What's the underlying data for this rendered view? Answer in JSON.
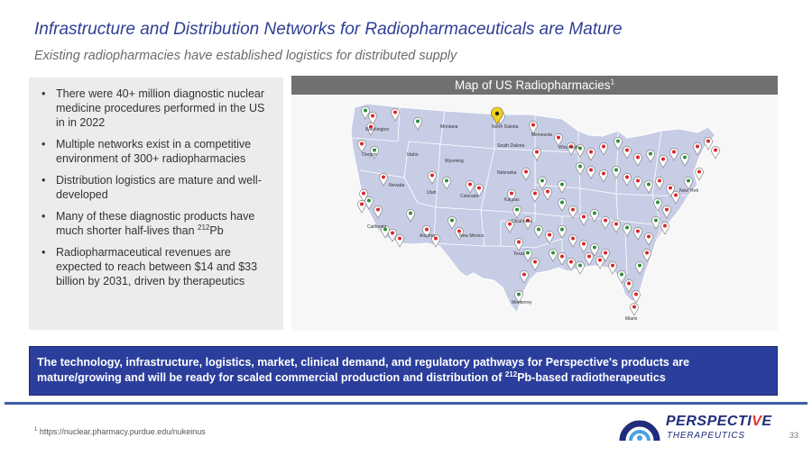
{
  "header": {
    "title": "Infrastructure and Distribution Networks for Radiopharmaceuticals  are Mature",
    "subtitle": "Existing radiopharmacies have established logistics for distributed supply"
  },
  "bullets": [
    {
      "text": "There were 40+ million diagnostic nuclear medicine procedures performed in the US in in 2022"
    },
    {
      "text": "Multiple networks exist in a competitive environment of 300+ radiopharmacies"
    },
    {
      "text": "Distribution logistics are mature and well-developed"
    },
    {
      "text_before": "Many of these diagnostic products have much shorter half-lives than ",
      "sup": "212",
      "text_after": "Pb"
    },
    {
      "text": "Radiopharmaceutical revenues are expected to reach between $14 and $33 billion by 2031, driven by therapeutics"
    }
  ],
  "bullet_symbol": "•",
  "map": {
    "header_label": "Map of US Radiopharmacies",
    "header_sup": "1",
    "state_labels": [
      "Washington",
      "Oregon",
      "California",
      "Nevada",
      "Idaho",
      "Montana",
      "Wyoming",
      "Utah",
      "Arizona",
      "Colorado",
      "New Mexico",
      "North Dakota",
      "South Dakota",
      "Nebraska",
      "Kansas",
      "Oklahoma",
      "Texas",
      "Minnesota",
      "Wisconsin",
      "New York",
      "Miami",
      "Monterrey"
    ],
    "colors": {
      "land": "#c8cde6",
      "border": "#ffffff",
      "pin": "#ffffff",
      "pin_outline": "#777777",
      "pin_red": "#d9262c",
      "pin_green": "#2f8f3a",
      "pin_yellow": "#f2d21b"
    }
  },
  "banner": {
    "text_before": "The technology, infrastructure, logistics, market, clinical demand, and regulatory pathways for Perspective's products are mature/growing and will be ready for scaled commercial production and distribution of ",
    "sup": "212",
    "text_after": "Pb-based radiotherapeutics"
  },
  "footnote": {
    "sup": "1",
    "text": "https://nuclear.pharmacy.purdue.edu/nukeinus"
  },
  "logo": {
    "word_start": "PERSPECT",
    "word_i": "I",
    "word_v": "V",
    "word_e": "E",
    "sub": "THERAPEUTICS",
    "accent": "#e4352c",
    "brand": "#1f2d7a"
  },
  "page_number": "33"
}
